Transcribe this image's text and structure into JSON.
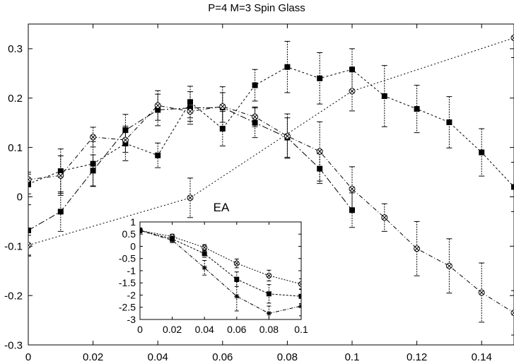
{
  "chart_data": [
    {
      "type": "line",
      "title": "P=4 M=3 Spin Glass",
      "xlabel": "",
      "ylabel": "",
      "xlim": [
        0,
        0.15
      ],
      "ylim": [
        -0.3,
        0.35
      ],
      "x_ticks": [
        "0",
        "0.02",
        "0.04",
        "0.06",
        "0.08",
        "0.1",
        "0.12",
        "0.14"
      ],
      "y_ticks": [
        "-0.3",
        "-0.2",
        "-0.1",
        "0",
        "0.1",
        "0.2",
        "0.3"
      ],
      "grid": false,
      "series": [
        {
          "marker": "filled-square",
          "dash": "3,3",
          "x": [
            0,
            0.01,
            0.02,
            0.03,
            0.04,
            0.05,
            0.06,
            0.07,
            0.08,
            0.09,
            0.1,
            0.11,
            0.12,
            0.13,
            0.14,
            0.15
          ],
          "y": [
            0.026,
            0.052,
            0.067,
            0.108,
            0.084,
            0.192,
            0.138,
            0.226,
            0.263,
            0.24,
            0.258,
            0.204,
            0.178,
            0.151,
            0.09,
            0.02
          ],
          "err": [
            0.02,
            0.045,
            0.045,
            0.035,
            0.025,
            0.032,
            0.035,
            0.032,
            0.052,
            0.052,
            0.042,
            0.062,
            0.048,
            0.052,
            0.048,
            0.05
          ]
        },
        {
          "marker": "filled-square",
          "dash": "9,3,2,3",
          "x": [
            0,
            0.01,
            0.02,
            0.03,
            0.04,
            0.05,
            0.06,
            0.07,
            0.08,
            0.09,
            0.1
          ],
          "y": [
            -0.068,
            -0.03,
            0.053,
            0.135,
            0.176,
            0.18,
            0.181,
            0.15,
            0.12,
            0.057,
            -0.027
          ],
          "err": [
            0.052,
            0.04,
            0.032,
            0.032,
            0.032,
            0.033,
            0.03,
            0.03,
            0.04,
            0.03,
            0.035
          ]
        },
        {
          "marker": "circle-x",
          "dash": "6,3,1,3",
          "x": [
            0,
            0.01,
            0.02,
            0.03,
            0.04,
            0.05,
            0.06,
            0.07,
            0.08,
            0.09,
            0.1,
            0.11,
            0.12,
            0.13,
            0.14,
            0.15
          ],
          "y": [
            0.035,
            0.043,
            0.121,
            0.115,
            0.185,
            0.173,
            0.183,
            0.162,
            0.123,
            0.092,
            0.016,
            -0.042,
            -0.105,
            -0.14,
            -0.194,
            -0.235
          ],
          "err": [
            0.015,
            0.04,
            0.02,
            0.025,
            0.03,
            0.02,
            0.04,
            0.02,
            0.045,
            0.06,
            0.045,
            0.028,
            0.055,
            0.055,
            0.06,
            0.045
          ]
        },
        {
          "marker": "circle-x",
          "dash": "2,3",
          "x": [
            0,
            0.05,
            0.1,
            0.15
          ],
          "y": [
            -0.098,
            -0.002,
            0.214,
            0.322
          ],
          "err": [
            0.02,
            0.04,
            0.04,
            0.04
          ]
        }
      ]
    },
    {
      "type": "line",
      "title": "EA",
      "xlabel": "",
      "ylabel": "",
      "xlim": [
        0,
        0.1
      ],
      "ylim": [
        -3,
        1
      ],
      "x_ticks": [
        "0",
        "0.02",
        "0.04",
        "0.06",
        "0.08",
        "0.1"
      ],
      "y_ticks": [
        "1",
        "0.5",
        "0",
        "-0.5",
        "-1",
        "-1.5",
        "-2",
        "-2.5",
        "-3"
      ],
      "grid": false,
      "series": [
        {
          "marker": "circle-x",
          "dash": "2,2",
          "x": [
            0,
            0.02,
            0.04,
            0.06,
            0.08,
            0.1
          ],
          "y": [
            0.65,
            0.4,
            -0.05,
            -0.7,
            -1.2,
            -1.55
          ],
          "err": [
            0.1,
            0.1,
            0.12,
            0.18,
            0.22,
            0.22
          ]
        },
        {
          "marker": "filled-square",
          "dash": "3,2",
          "x": [
            0,
            0.02,
            0.04,
            0.06,
            0.08,
            0.1
          ],
          "y": [
            0.65,
            0.3,
            -0.3,
            -1.35,
            -1.95,
            -2.05
          ],
          "err": [
            0.1,
            0.1,
            0.15,
            0.3,
            0.38,
            0.3
          ]
        },
        {
          "marker": "star",
          "dash": "5,2,1,2",
          "x": [
            0,
            0.02,
            0.04,
            0.06,
            0.08,
            0.1
          ],
          "y": [
            0.65,
            0.25,
            -0.88,
            -2.05,
            -2.75,
            -2.45
          ],
          "err": [
            0.1,
            0.1,
            0.3,
            0.6,
            0.3,
            0.4
          ]
        }
      ]
    }
  ]
}
